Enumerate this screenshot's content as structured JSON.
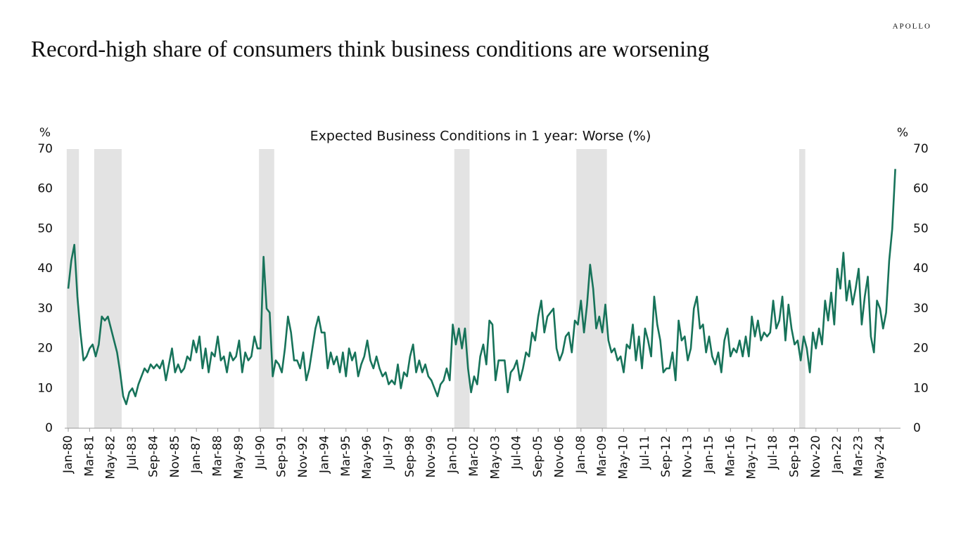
{
  "brand": "APOLLO",
  "chart_data": {
    "type": "line",
    "title": "Record-high share of consumers think business conditions are worsening",
    "subtitle": "Expected Business Conditions in 1 year: Worse (%)",
    "ylabel": "%",
    "y2label": "%",
    "ylim": [
      0,
      70
    ],
    "yticks": [
      0,
      10,
      20,
      30,
      40,
      50,
      60,
      70
    ],
    "y2lim": [
      0,
      70
    ],
    "y2ticks": [
      0,
      10,
      20,
      30,
      40,
      50,
      60,
      70
    ],
    "recessions": [
      {
        "start": 0,
        "end": 3
      },
      {
        "start": 9,
        "end": 17
      },
      {
        "start": 63,
        "end": 67
      },
      {
        "start": 127,
        "end": 131
      },
      {
        "start": 167,
        "end": 176
      },
      {
        "start": 240,
        "end": 241
      }
    ],
    "recession_color": "#e3e3e3",
    "categories": [
      "Jan-80",
      null,
      null,
      null,
      null,
      null,
      null,
      "Mar-81",
      null,
      null,
      null,
      null,
      null,
      null,
      "May-82",
      null,
      null,
      null,
      null,
      null,
      null,
      "Jul-83",
      null,
      null,
      null,
      null,
      null,
      null,
      "Sep-84",
      null,
      null,
      null,
      null,
      null,
      null,
      "Nov-85",
      null,
      null,
      null,
      null,
      null,
      null,
      "Jan-87",
      null,
      null,
      null,
      null,
      null,
      null,
      "Mar-88",
      null,
      null,
      null,
      null,
      null,
      null,
      "May-89",
      null,
      null,
      null,
      null,
      null,
      null,
      "Jul-90",
      null,
      null,
      null,
      null,
      null,
      null,
      "Sep-91",
      null,
      null,
      null,
      null,
      null,
      null,
      "Nov-92",
      null,
      null,
      null,
      null,
      null,
      null,
      "Jan-94",
      null,
      null,
      null,
      null,
      null,
      null,
      "Mar-95",
      null,
      null,
      null,
      null,
      null,
      null,
      "May-96",
      null,
      null,
      null,
      null,
      null,
      null,
      "Jul-97",
      null,
      null,
      null,
      null,
      null,
      null,
      "Sep-98",
      null,
      null,
      null,
      null,
      null,
      null,
      "Nov-99",
      null,
      null,
      null,
      null,
      null,
      null,
      "Jan-01",
      null,
      null,
      null,
      null,
      null,
      null,
      "Mar-02",
      null,
      null,
      null,
      null,
      null,
      null,
      "May-03",
      null,
      null,
      null,
      null,
      null,
      null,
      "Jul-04",
      null,
      null,
      null,
      null,
      null,
      null,
      "Sep-05",
      null,
      null,
      null,
      null,
      null,
      null,
      "Nov-06",
      null,
      null,
      null,
      null,
      null,
      null,
      "Jan-08",
      null,
      null,
      null,
      null,
      null,
      null,
      "Mar-09",
      null,
      null,
      null,
      null,
      null,
      null,
      "May-10",
      null,
      null,
      null,
      null,
      null,
      null,
      "Jul-11",
      null,
      null,
      null,
      null,
      null,
      null,
      "Sep-12",
      null,
      null,
      null,
      null,
      null,
      null,
      "Nov-13",
      null,
      null,
      null,
      null,
      null,
      null,
      "Jan-15",
      null,
      null,
      null,
      null,
      null,
      null,
      "Mar-16",
      null,
      null,
      null,
      null,
      null,
      null,
      "May-17",
      null,
      null,
      null,
      null,
      null,
      null,
      "Jul-18",
      null,
      null,
      null,
      null,
      null,
      null,
      "Sep-19",
      null,
      null,
      null,
      null,
      null,
      null,
      "Nov-20",
      null,
      null,
      null,
      null,
      null,
      null,
      "Jan-22",
      null,
      null,
      null,
      null,
      null,
      null,
      "Mar-23",
      null,
      null,
      null,
      null,
      null,
      null,
      "May-24",
      null,
      null,
      null,
      null,
      null
    ],
    "series": [
      {
        "color": "#17735a",
        "values": [
          35,
          42,
          46,
          33,
          24,
          17,
          18,
          20,
          21,
          18,
          21,
          28,
          27,
          28,
          25,
          22,
          19,
          14,
          8,
          6,
          9,
          10,
          8,
          11,
          13,
          15,
          14,
          16,
          15,
          16,
          15,
          17,
          12,
          16,
          20,
          14,
          16,
          14,
          15,
          18,
          17,
          22,
          19,
          23,
          15,
          20,
          14,
          19,
          18,
          23,
          17,
          18,
          14,
          19,
          17,
          18,
          22,
          14,
          19,
          17,
          18,
          23,
          20,
          20,
          43,
          30,
          29,
          13,
          17,
          16,
          14,
          20,
          28,
          24,
          17,
          17,
          15,
          19,
          12,
          15,
          20,
          25,
          28,
          24,
          24,
          15,
          19,
          16,
          18,
          14,
          19,
          13,
          20,
          17,
          19,
          13,
          16,
          18,
          22,
          17,
          15,
          18,
          15,
          13,
          14,
          11,
          12,
          11,
          16,
          10,
          14,
          13,
          18,
          21,
          14,
          17,
          14,
          16,
          13,
          12,
          10,
          8,
          11,
          12,
          15,
          12,
          26,
          21,
          25,
          20,
          25,
          15,
          9,
          13,
          11,
          18,
          21,
          16,
          27,
          26,
          12,
          17,
          17,
          17,
          9,
          14,
          15,
          17,
          12,
          15,
          19,
          18,
          24,
          22,
          28,
          32,
          24,
          28,
          29,
          30,
          20,
          17,
          19,
          23,
          24,
          19,
          27,
          26,
          32,
          24,
          31,
          41,
          35,
          25,
          28,
          24,
          31,
          22,
          19,
          20,
          17,
          18,
          14,
          21,
          20,
          26,
          17,
          23,
          15,
          25,
          22,
          18,
          33,
          26,
          22,
          14,
          15,
          15,
          19,
          12,
          27,
          22,
          23,
          17,
          20,
          30,
          33,
          25,
          26,
          19,
          23,
          18,
          16,
          19,
          14,
          22,
          25,
          18,
          20,
          19,
          22,
          18,
          23,
          18,
          28,
          23,
          27,
          22,
          24,
          23,
          24,
          32,
          25,
          27,
          33,
          22,
          31,
          25,
          21,
          22,
          17,
          23,
          20,
          14,
          24,
          20,
          25,
          21,
          32,
          27,
          34,
          26,
          40,
          35,
          44,
          32,
          37,
          31,
          35,
          40,
          26,
          33,
          38,
          23,
          19,
          32,
          30,
          25,
          29,
          42,
          50,
          65
        ]
      }
    ]
  }
}
